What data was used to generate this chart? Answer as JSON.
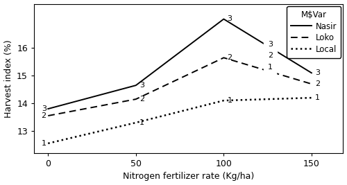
{
  "x": [
    0,
    50,
    100,
    150
  ],
  "nasir": [
    13.8,
    14.65,
    17.05,
    15.1
  ],
  "loko": [
    13.55,
    14.15,
    15.65,
    14.7
  ],
  "local": [
    12.55,
    13.3,
    14.1,
    14.2
  ],
  "xlabel": "Nitrogen fertilizer rate (Kg/ha)",
  "ylabel": "Harvest index (%)",
  "legend_title": "M$Var",
  "legend_labels": [
    "Nasir",
    "Loko",
    "Local"
  ],
  "legend_markers": [
    "3",
    "2",
    "1"
  ],
  "xticks": [
    0,
    50,
    100,
    150
  ],
  "yticks": [
    13,
    14,
    15,
    16
  ],
  "ylim": [
    12.2,
    17.6
  ],
  "xlim": [
    -8,
    168
  ],
  "bg_color": "#ffffff",
  "line_color": "#000000",
  "label_fontsize": 9,
  "tick_fontsize": 9,
  "legend_fontsize": 8.5,
  "marker_fontsize": 8
}
